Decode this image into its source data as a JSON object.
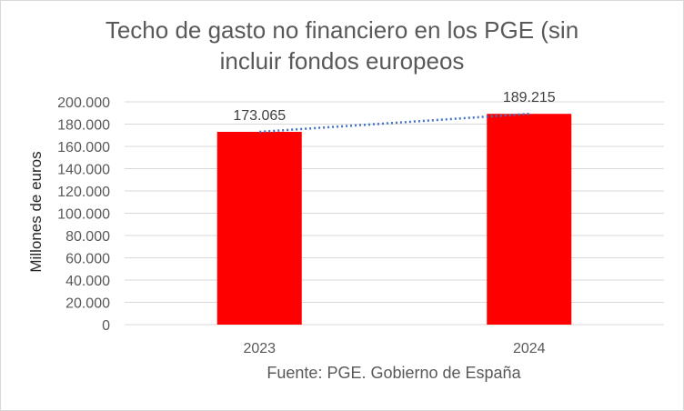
{
  "chart_data": {
    "type": "bar",
    "title_lines": [
      "Techo de gasto no financiero en los PGE (sin",
      "incluir fondos europeos"
    ],
    "ylabel": "Millones de euros",
    "xlabel": "Fuente: PGE. Gobierno de España",
    "categories": [
      "2023",
      "2024"
    ],
    "values": [
      173065,
      189215
    ],
    "data_labels": [
      "173.065",
      "189.215"
    ],
    "ylim": [
      0,
      200000
    ],
    "yticks": [
      0,
      20000,
      40000,
      60000,
      80000,
      100000,
      120000,
      140000,
      160000,
      180000,
      200000
    ],
    "ytick_labels": [
      "0",
      "20.000",
      "40.000",
      "60.000",
      "80.000",
      "100.000",
      "120.000",
      "140.000",
      "160.000",
      "180.000",
      "200.000"
    ],
    "grid": true,
    "trendline": "linear-dotted",
    "colors": {
      "bar": "#ff0000",
      "trend": "#4472c4",
      "grid": "#d9d9d9"
    }
  }
}
